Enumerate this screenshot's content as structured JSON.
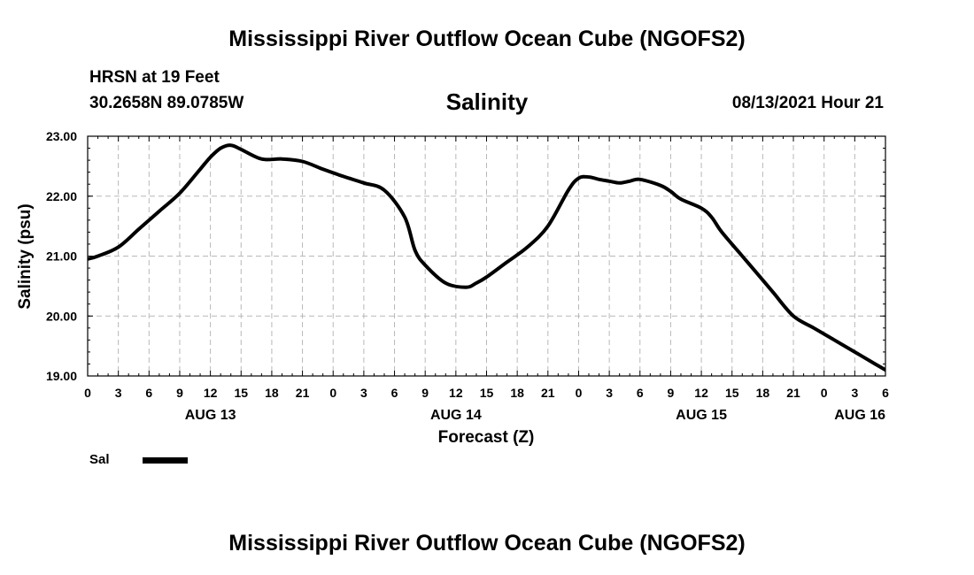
{
  "header": {
    "top_title": "Mississippi River Outflow Ocean Cube (NGOFS2)",
    "station": "HRSN at 19 Feet",
    "coords": "30.2658N  89.0785W",
    "chart_title": "Salinity",
    "run_time": "08/13/2021 Hour 21",
    "bottom_title": "Mississippi River Outflow Ocean Cube (NGOFS2)"
  },
  "legend": {
    "label": "Sal"
  },
  "chart_data": {
    "type": "line",
    "title": "Salinity",
    "xlabel": "Forecast (Z)",
    "ylabel": "Salinity (psu)",
    "xlim": [
      0,
      78
    ],
    "ylim": [
      19.0,
      23.0
    ],
    "grid": true,
    "x_tick_values": [
      0,
      3,
      6,
      9,
      12,
      15,
      18,
      21,
      24,
      27,
      30,
      33,
      36,
      39,
      42,
      45,
      48,
      51,
      54,
      57,
      60,
      63,
      66,
      69,
      72,
      75,
      78
    ],
    "x_tick_labels": [
      "0",
      "3",
      "6",
      "9",
      "12",
      "15",
      "18",
      "21",
      "0",
      "3",
      "6",
      "9",
      "12",
      "15",
      "18",
      "21",
      "0",
      "3",
      "6",
      "9",
      "12",
      "15",
      "18",
      "21",
      "0",
      "3",
      "6"
    ],
    "y_ticks": [
      19.0,
      20.0,
      21.0,
      22.0,
      23.0
    ],
    "y_tick_labels": [
      "19.00",
      "20.00",
      "21.00",
      "22.00",
      "23.00"
    ],
    "day_labels": [
      {
        "x": 12,
        "label": "AUG 13"
      },
      {
        "x": 36,
        "label": "AUG 14"
      },
      {
        "x": 60,
        "label": "AUG 15"
      },
      {
        "x": 75.5,
        "label": "AUG 16"
      }
    ],
    "series": [
      {
        "name": "Sal",
        "color": "#000000",
        "x": [
          0,
          1,
          3,
          5,
          7,
          9,
          11,
          12,
          13,
          14,
          15,
          17,
          19,
          21,
          23,
          25,
          27,
          29,
          31,
          32,
          33,
          35,
          37,
          38,
          39,
          41,
          43,
          45,
          47,
          48,
          49,
          50,
          51,
          52,
          53,
          54,
          56,
          57,
          58,
          60,
          61,
          62,
          64,
          66,
          67,
          69,
          71,
          73,
          75,
          77,
          78
        ],
        "y": [
          20.95,
          21.0,
          21.15,
          21.45,
          21.75,
          22.05,
          22.45,
          22.65,
          22.8,
          22.85,
          22.78,
          22.62,
          22.62,
          22.58,
          22.45,
          22.33,
          22.22,
          22.1,
          21.65,
          21.1,
          20.85,
          20.55,
          20.48,
          20.55,
          20.65,
          20.9,
          21.15,
          21.5,
          22.1,
          22.3,
          22.32,
          22.28,
          22.25,
          22.22,
          22.25,
          22.28,
          22.18,
          22.08,
          21.95,
          21.8,
          21.65,
          21.4,
          21.0,
          20.6,
          20.4,
          20.0,
          19.8,
          19.6,
          19.4,
          19.2,
          19.1
        ]
      }
    ]
  }
}
